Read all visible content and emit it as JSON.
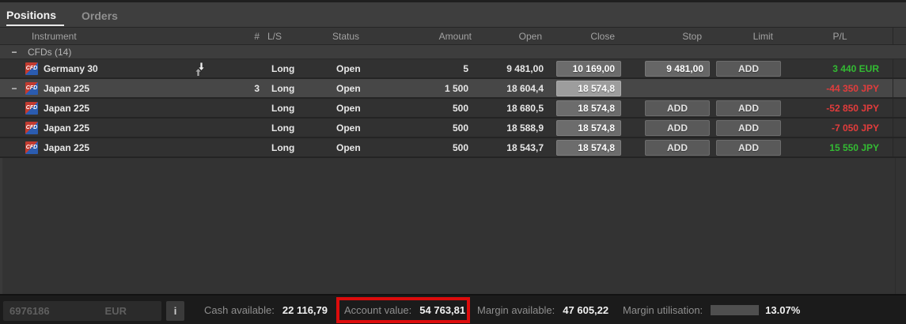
{
  "tabs": [
    {
      "label": "Positions",
      "active": true
    },
    {
      "label": "Orders",
      "active": false
    }
  ],
  "table": {
    "columns": {
      "instrument": "Instrument",
      "count": "#",
      "ls": "L/S",
      "status": "Status",
      "amount": "Amount",
      "open": "Open",
      "close": "Close",
      "stop": "Stop",
      "limit": "Limit",
      "pl": "P/L"
    },
    "group_label": "CFDs (14)",
    "group_collapse_glyph": "−",
    "cfd_badge": "CFD",
    "rows": [
      {
        "instrument": "Germany 30",
        "count": "",
        "ls": "Long",
        "status": "Open",
        "amount": "5",
        "open": "9 481,00",
        "close": "10 169,00",
        "stop": "9 481,00",
        "limit": "ADD",
        "pl": "3 440 EUR",
        "pl_color": "green",
        "selected": false
      },
      {
        "instrument": "Japan 225",
        "count": "3",
        "ls": "Long",
        "status": "Open",
        "amount": "1 500",
        "open": "18 604,4",
        "close": "18 574,8",
        "stop": "",
        "limit": "",
        "pl": "-44 350 JPY",
        "pl_color": "red",
        "selected": true
      },
      {
        "instrument": "Japan 225",
        "count": "",
        "ls": "Long",
        "status": "Open",
        "amount": "500",
        "open": "18 680,5",
        "close": "18 574,8",
        "stop": "ADD",
        "limit": "ADD",
        "pl": "-52 850 JPY",
        "pl_color": "red",
        "selected": false
      },
      {
        "instrument": "Japan 225",
        "count": "",
        "ls": "Long",
        "status": "Open",
        "amount": "500",
        "open": "18 588,9",
        "close": "18 574,8",
        "stop": "ADD",
        "limit": "ADD",
        "pl": "-7 050 JPY",
        "pl_color": "red",
        "selected": false
      },
      {
        "instrument": "Japan 225",
        "count": "",
        "ls": "Long",
        "status": "Open",
        "amount": "500",
        "open": "18 543,7",
        "close": "18 574,8",
        "stop": "ADD",
        "limit": "ADD",
        "pl": "15 550 JPY",
        "pl_color": "green",
        "selected": false
      }
    ]
  },
  "status_bar": {
    "account_id": "6976186",
    "currency": "EUR",
    "info_button_label": "i",
    "cash_available_label": "Cash available:",
    "cash_available_value": "22 116,79",
    "account_value_label": "Account value:",
    "account_value_value": "54 763,81",
    "margin_available_label": "Margin available:",
    "margin_available_value": "47 605,22",
    "margin_utilisation_label": "Margin utilisation:",
    "margin_utilisation_value": "13.07%",
    "margin_utilisation_percent": 13.07
  },
  "colors": {
    "pl_positive": "#33bb33",
    "pl_negative": "#e23c3c",
    "annotation_red": "#dd0c0c",
    "progress_green": "#76b82e",
    "button_gray": "#6c6c6c",
    "selected_row": "#474747"
  }
}
